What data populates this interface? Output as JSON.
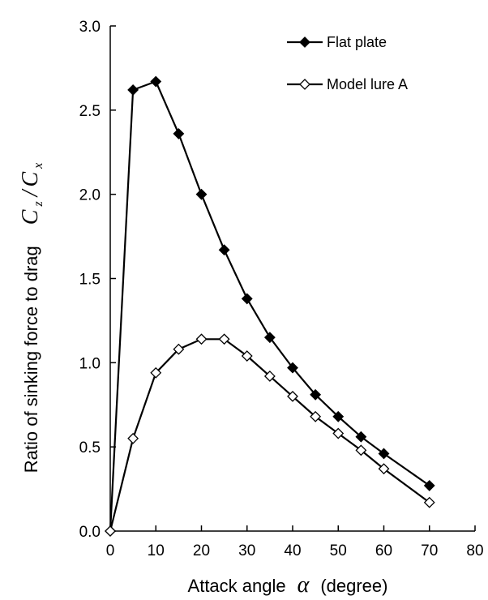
{
  "chart_data": {
    "type": "line",
    "title": "",
    "xlabel": {
      "prefix": "Attack angle",
      "symbol": "α",
      "suffix": "(degree)"
    },
    "ylabel": {
      "text": "Ratio of sinking force to drag",
      "num_symbol": "C",
      "num_sub": "z",
      "slash": "/",
      "den_symbol": "C",
      "den_sub": "x"
    },
    "xlim": [
      0,
      80
    ],
    "ylim": [
      0,
      3.0
    ],
    "xticks": [
      0,
      10,
      20,
      30,
      40,
      50,
      60,
      70,
      80
    ],
    "yticks": [
      0,
      0.5,
      1.0,
      1.5,
      2.0,
      2.5,
      3.0
    ],
    "xtick_labels": [
      "0",
      "10",
      "20",
      "30",
      "40",
      "50",
      "60",
      "70",
      "80"
    ],
    "ytick_labels": [
      "0.0",
      "0.5",
      "1.0",
      "1.5",
      "2.0",
      "2.5",
      "3.0"
    ],
    "grid": false,
    "legend_position": "top-right",
    "series": [
      {
        "name": "Flat plate",
        "marker": "filled-diamond",
        "x": [
          0,
          5,
          10,
          15,
          20,
          25,
          30,
          35,
          40,
          45,
          50,
          55,
          60,
          70
        ],
        "y": [
          0,
          2.62,
          2.67,
          2.36,
          2.0,
          1.67,
          1.38,
          1.15,
          0.97,
          0.81,
          0.68,
          0.56,
          0.46,
          0.27
        ]
      },
      {
        "name": "Model lure A",
        "marker": "open-diamond",
        "x": [
          0,
          5,
          10,
          15,
          20,
          25,
          30,
          35,
          40,
          45,
          50,
          55,
          60,
          70
        ],
        "y": [
          0,
          0.55,
          0.94,
          1.08,
          1.14,
          1.14,
          1.04,
          0.92,
          0.8,
          0.68,
          0.58,
          0.48,
          0.37,
          0.17
        ]
      }
    ]
  }
}
